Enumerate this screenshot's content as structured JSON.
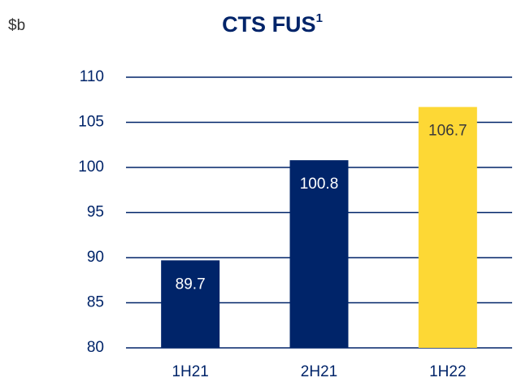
{
  "chart_data": {
    "type": "bar",
    "title": "CTS FUS",
    "title_superscript": "1",
    "unit": "$b",
    "categories": [
      "1H21",
      "2H21",
      "1H22"
    ],
    "values": [
      89.7,
      100.8,
      106.7
    ],
    "colors": [
      "#002469",
      "#002469",
      "#fdd835"
    ],
    "label_colors": [
      "#ffffff",
      "#ffffff",
      "#3a3a3a"
    ],
    "ylim": [
      80,
      110
    ],
    "yticks": [
      80,
      85,
      90,
      95,
      100,
      105,
      110
    ],
    "grid": true,
    "grid_color": "#002469"
  }
}
